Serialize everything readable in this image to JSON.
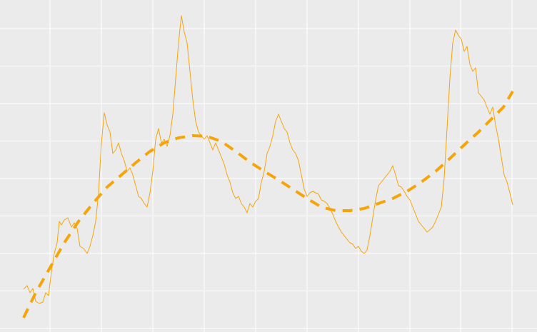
{
  "chart_data": {
    "type": "line",
    "xlim": [
      0,
      752
    ],
    "ylim": [
      -5,
      460
    ],
    "xticks": [
      70,
      142,
      214,
      286,
      358,
      430,
      502,
      574,
      645,
      717
    ],
    "yticks": [
      0,
      52.5,
      105,
      157.5,
      210,
      262.5,
      315,
      367.5,
      420
    ],
    "grid": true,
    "background": "#ebebeb",
    "grid_color": "#ffffff",
    "series": [
      {
        "color": "#f5a50a",
        "style": "solid",
        "x": [
          33,
          38,
          42,
          46,
          50,
          55,
          60,
          64,
          68,
          72,
          76,
          80,
          83,
          86,
          90,
          95,
          100,
          104,
          108,
          112,
          117,
          122,
          126,
          130,
          134,
          138,
          142,
          146,
          150,
          154,
          158,
          162,
          166,
          170,
          174,
          178,
          182,
          186,
          190,
          194,
          198,
          202,
          206,
          210,
          214,
          218,
          222,
          226,
          230,
          234,
          238,
          242,
          246,
          250,
          254,
          258,
          262,
          266,
          270,
          274,
          278,
          282,
          286,
          290,
          294,
          298,
          302,
          306,
          310,
          314,
          318,
          322,
          326,
          330,
          334,
          338,
          342,
          346,
          350,
          354,
          358,
          362,
          366,
          370,
          374,
          378,
          382,
          386,
          390,
          394,
          398,
          402,
          406,
          410,
          414,
          418,
          422,
          426,
          430,
          434,
          438,
          442,
          446,
          450,
          454,
          458,
          462,
          466,
          470,
          474,
          478,
          482,
          486,
          490,
          494,
          498,
          502,
          506,
          510,
          514,
          518,
          522,
          526,
          530,
          534,
          538,
          542,
          546,
          550,
          554,
          558,
          562,
          566,
          570,
          574,
          578,
          582,
          586,
          590,
          594,
          598,
          602,
          606,
          610,
          614,
          618,
          622,
          626,
          630,
          634,
          638,
          642,
          646,
          650,
          654,
          658,
          662,
          666,
          670,
          674,
          678,
          682,
          686,
          690,
          694,
          698,
          702,
          706,
          710,
          714,
          718
        ],
        "values": [
          55,
          60,
          50,
          56,
          38,
          35,
          37,
          50,
          46,
          80,
          105,
          120,
          150,
          145,
          152,
          155,
          142,
          148,
          140,
          115,
          112,
          105,
          115,
          130,
          150,
          190,
          260,
          302,
          285,
          275,
          245,
          250,
          260,
          245,
          235,
          220,
          225,
          215,
          200,
          185,
          182,
          175,
          170,
          190,
          220,
          265,
          280,
          260,
          265,
          255,
          270,
          300,
          350,
          400,
          438,
          415,
          400,
          360,
          320,
          290,
          275,
          270,
          265,
          270,
          260,
          250,
          260,
          250,
          240,
          230,
          215,
          205,
          190,
          182,
          185,
          175,
          170,
          162,
          175,
          170,
          178,
          182,
          205,
          220,
          245,
          255,
          270,
          290,
          300,
          290,
          280,
          275,
          260,
          250,
          245,
          235,
          215,
          195,
          185,
          190,
          192,
          190,
          188,
          180,
          178,
          175,
          168,
          160,
          150,
          142,
          135,
          130,
          125,
          120,
          118,
          112,
          115,
          108,
          105,
          110,
          130,
          155,
          180,
          200,
          205,
          210,
          215,
          220,
          228,
          215,
          200,
          198,
          192,
          185,
          180,
          170,
          160,
          150,
          145,
          140,
          135,
          138,
          142,
          150,
          160,
          170,
          210,
          280,
          350,
          400,
          418,
          410,
          405,
          388,
          395,
          370,
          360,
          365,
          330,
          325,
          320,
          310,
          300,
          310,
          285,
          265,
          240,
          215,
          205,
          190,
          173
        ]
      },
      {
        "color": "#f5a50a",
        "style": "dashed",
        "x": [
          33,
          50,
          70,
          90,
          110,
          130,
          150,
          170,
          190,
          210,
          230,
          250,
          270,
          290,
          310,
          330,
          350,
          370,
          390,
          410,
          430,
          450,
          470,
          490,
          510,
          530,
          550,
          570,
          590,
          610,
          630,
          650,
          670,
          690,
          705,
          718
        ],
        "values": [
          15,
          50,
          85,
          120,
          150,
          175,
          198,
          215,
          232,
          248,
          260,
          267,
          270,
          269,
          262,
          248,
          233,
          220,
          208,
          195,
          182,
          170,
          165,
          165,
          168,
          175,
          182,
          192,
          205,
          220,
          238,
          257,
          275,
          295,
          310,
          332
        ]
      }
    ]
  }
}
